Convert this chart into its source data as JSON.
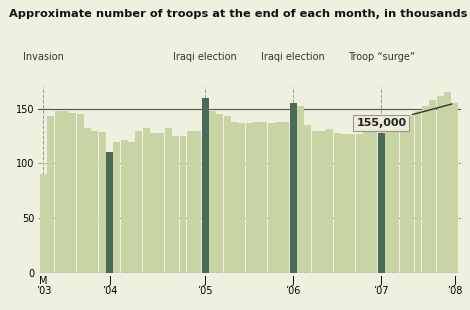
{
  "title": "Approximate number of troops at the end of each month, in thousands",
  "background_color": "#f0f0e0",
  "bar_color_normal": "#c8d4a4",
  "bar_color_highlight": "#4a6b58",
  "ylim": [
    0,
    170
  ],
  "yticks": [
    0,
    50,
    100,
    150
  ],
  "annotation_label": "155,000",
  "highlight_indices": [
    9,
    22,
    34,
    46
  ],
  "values": [
    90,
    143,
    148,
    148,
    146,
    145,
    132,
    130,
    129,
    110,
    120,
    121,
    120,
    130,
    132,
    128,
    128,
    132,
    125,
    125,
    130,
    130,
    160,
    148,
    145,
    143,
    138,
    137,
    137,
    138,
    138,
    137,
    138,
    138,
    155,
    152,
    135,
    130,
    130,
    131,
    128,
    127,
    127,
    127,
    130,
    130,
    128,
    137,
    138,
    138,
    143,
    148,
    152,
    158,
    162,
    165,
    155
  ],
  "event_labels": [
    "Invasion",
    "Iraqi election",
    "Iraqi election",
    "Troop “surge”"
  ],
  "event_indices": [
    0,
    22,
    34,
    46
  ],
  "xtick_positions": [
    0,
    9,
    22,
    34,
    46,
    56
  ],
  "xtick_labels": [
    "M\n’03",
    "J\n’04",
    "J\n’05",
    "J\n’06",
    "J\n’07",
    "J\n’08"
  ]
}
